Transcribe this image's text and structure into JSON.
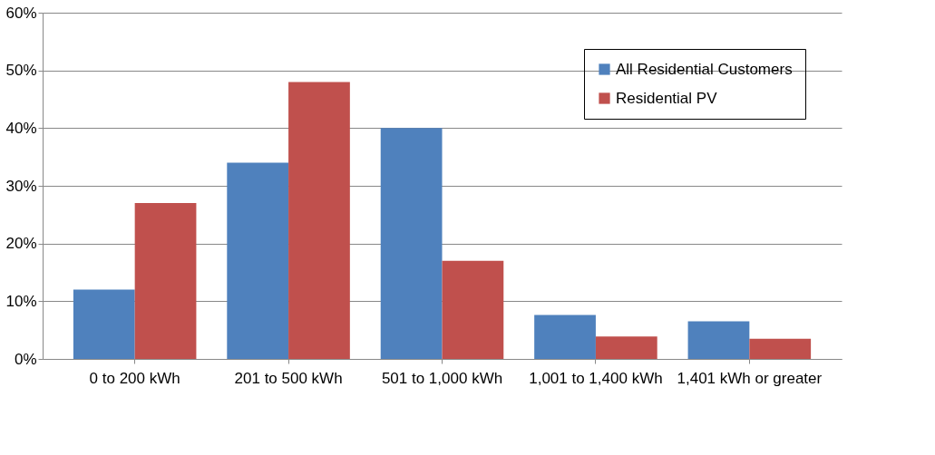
{
  "chart_data": {
    "type": "bar",
    "categories": [
      "0 to 200 kWh",
      "201 to 500 kWh",
      "501 to 1,000 kWh",
      "1,001 to 1,400 kWh",
      "1,401 kWh or greater"
    ],
    "series": [
      {
        "name": "All Residential Customers",
        "color": "#4f81bd",
        "values": [
          12,
          34,
          40,
          7.6,
          6.5
        ]
      },
      {
        "name": "Residential PV",
        "color": "#c0504d",
        "values": [
          27,
          48,
          17,
          3.9,
          3.5
        ]
      }
    ],
    "ylim": [
      0,
      60
    ],
    "yticks": [
      {
        "value": 0,
        "label": "0%"
      },
      {
        "value": 10,
        "label": "10%"
      },
      {
        "value": 20,
        "label": "20%"
      },
      {
        "value": 30,
        "label": "30%"
      },
      {
        "value": 40,
        "label": "40%"
      },
      {
        "value": 50,
        "label": "50%"
      },
      {
        "value": 60,
        "label": "60%"
      }
    ],
    "grid": "y",
    "legend": "top right"
  }
}
